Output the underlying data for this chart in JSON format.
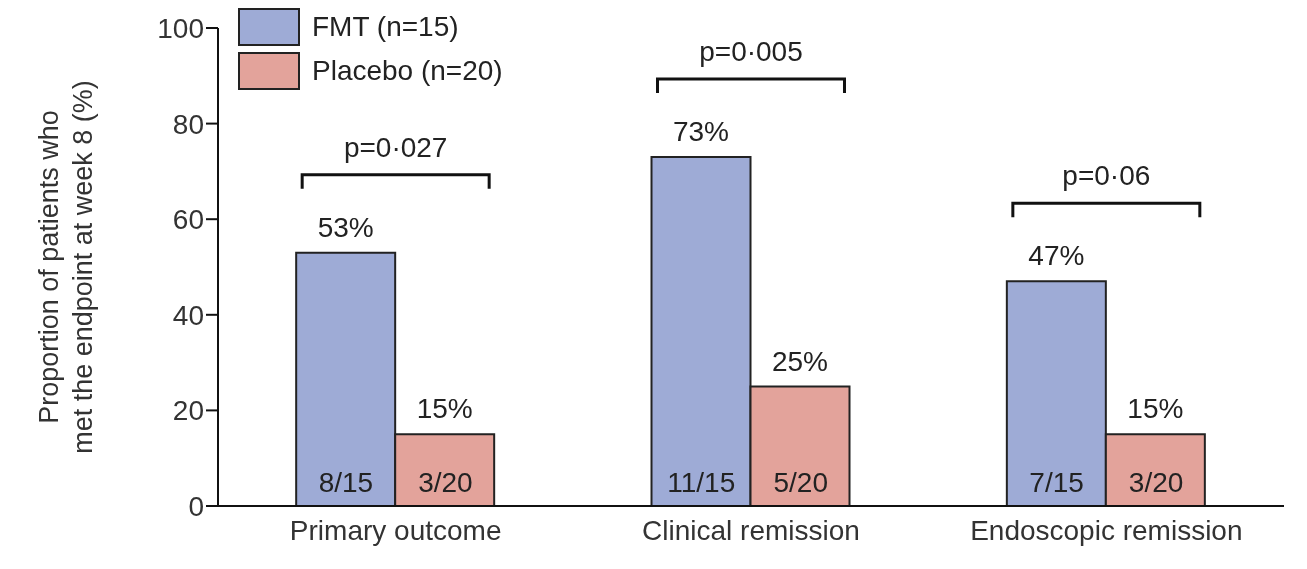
{
  "chart_data": {
    "type": "bar",
    "ylabel": "Proportion of patients who met the endpoint at week 8 (%)",
    "categories": [
      "Primary outcome",
      "Clinical remission",
      "Endoscopic remission"
    ],
    "series": [
      {
        "name": "FMT (n=15)",
        "color": "#9eabd6",
        "values": [
          53,
          73,
          47
        ],
        "value_labels": [
          "53%",
          "73%",
          "47%"
        ]
      },
      {
        "name": "Placebo (n=20)",
        "color": "#e3a39b",
        "values": [
          15,
          25,
          15
        ],
        "value_labels": [
          "15%",
          "25%",
          "15%"
        ]
      }
    ],
    "ylim": [
      0,
      100
    ],
    "yticks": [
      0,
      20,
      40,
      60,
      80,
      100
    ],
    "grid": false,
    "legend": "top left",
    "annotations": [
      "p=0·027",
      "p=0·005",
      "p=0·06",
      "8/15",
      "3/20",
      "11/15",
      "5/20",
      "7/15",
      "3/20"
    ]
  }
}
